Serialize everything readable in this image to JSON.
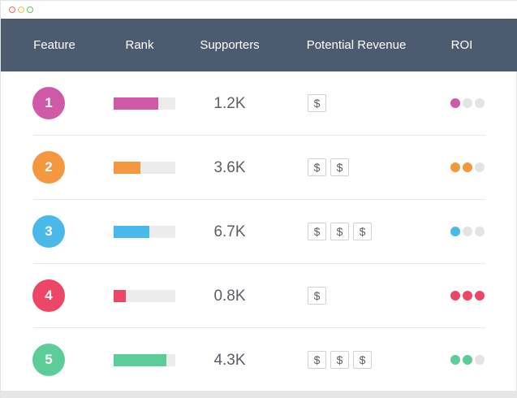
{
  "header": {
    "feature": "Feature",
    "rank": "Rank",
    "supporters": "Supporters",
    "revenue": "Potential Revenue",
    "roi": "ROI"
  },
  "rows": [
    {
      "number": "1",
      "color": "#cf5aa7",
      "rank_fill": 0.72,
      "supporters": "1.2K",
      "dollars": [
        "$"
      ],
      "roi_filled": 1
    },
    {
      "number": "2",
      "color": "#f4973e",
      "rank_fill": 0.43,
      "supporters": "3.6K",
      "dollars": [
        "$",
        "$"
      ],
      "roi_filled": 2
    },
    {
      "number": "3",
      "color": "#4ab8e8",
      "rank_fill": 0.58,
      "supporters": "6.7K",
      "dollars": [
        "$",
        "$",
        "$"
      ],
      "roi_filled": 1
    },
    {
      "number": "4",
      "color": "#ec4767",
      "rank_fill": 0.2,
      "supporters": "0.8K",
      "dollars": [
        "$"
      ],
      "roi_filled": 3
    },
    {
      "number": "5",
      "color": "#5ccd99",
      "rank_fill": 0.86,
      "supporters": "4.3K",
      "dollars": [
        "$",
        "$",
        "$"
      ],
      "roi_filled": 2
    }
  ],
  "colors": {
    "header_bg": "#4d5b71",
    "empty_track": "#ececec",
    "empty_dot": "#e4e4e4"
  }
}
